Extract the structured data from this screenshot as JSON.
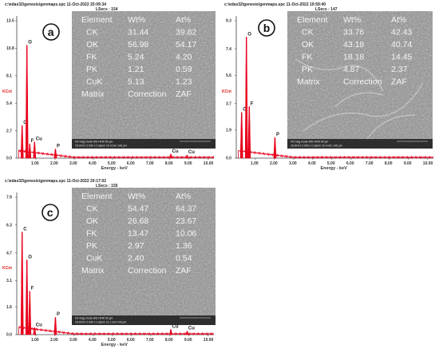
{
  "chart_data": [
    {
      "type": "bar",
      "panel_label": "a",
      "title": "c:\\edax32\\genesis\\genmaps.spc  11-Oct-2022 20:09:34",
      "subtitle": "LSecs : 154",
      "ylabel": "KCnt",
      "xlabel": "Energy - keV",
      "y_ticks": [
        "0.0",
        "2.7",
        "5.4",
        "8.1",
        "10.8",
        "13.5"
      ],
      "ylim": [
        0,
        13.5
      ],
      "x_ticks": [
        "1.00",
        "2.00",
        "3.00",
        "4.00",
        "5.00",
        "6.00",
        "7.00",
        "8.00",
        "9.00",
        "10.00"
      ],
      "xlim": [
        0,
        10.3
      ],
      "peaks": [
        {
          "label": "C",
          "x": 0.28,
          "y": 3.2
        },
        {
          "label": "O",
          "x": 0.53,
          "y": 11.1
        },
        {
          "label": "F",
          "x": 0.68,
          "y": 1.4
        },
        {
          "label": "Cu",
          "x": 0.93,
          "y": 1.6
        },
        {
          "label": "P",
          "x": 2.02,
          "y": 0.9
        },
        {
          "label": "Cu",
          "x": 8.05,
          "y": 0.4
        },
        {
          "label": "Cu",
          "x": 8.9,
          "y": 0.3
        }
      ],
      "table": {
        "header": [
          "Element",
          "Wt%",
          "At%"
        ],
        "rows": [
          [
            "CK",
            "31.44",
            "39.82"
          ],
          [
            "OK",
            "56.98",
            "54.17"
          ],
          [
            "FK",
            "5.24",
            "4.20"
          ],
          [
            "PK",
            "1.21",
            "0.59"
          ],
          [
            "CuK",
            "5.13",
            "1.23"
          ],
          [
            "Matrix",
            "Correction",
            "ZAF"
          ]
        ]
      },
      "micrograph_bar": "HV   mag   mode   WD   HFW                          50 µm",
      "micrograph_info": "15.00 kV  2 000 x  Custom  10.4 mm  149 µm"
    },
    {
      "type": "bar",
      "panel_label": "b",
      "title": "c:\\edax32\\genesis\\genmaps.spc  11-Oct-2022 19:59:40",
      "subtitle": "LSecs : 147",
      "ylabel": "KCnt",
      "xlabel": "Energy - keV",
      "y_ticks": [
        "0.0",
        "1.9",
        "3.7",
        "5.6",
        "7.4",
        "9.3"
      ],
      "ylim": [
        0,
        9.3
      ],
      "x_ticks": [
        "1.00",
        "2.00",
        "3.00",
        "4.00",
        "5.00",
        "6.00",
        "7.00",
        "8.00",
        "9.00",
        "10.00"
      ],
      "xlim": [
        0,
        10.3
      ],
      "peaks": [
        {
          "label": "C",
          "x": 0.28,
          "y": 3.1
        },
        {
          "label": "O",
          "x": 0.53,
          "y": 8.2
        },
        {
          "label": "F",
          "x": 0.68,
          "y": 3.5
        },
        {
          "label": "P",
          "x": 2.02,
          "y": 1.4
        }
      ],
      "table": {
        "header": [
          "Element",
          "Wt%",
          "At%"
        ],
        "rows": [
          [
            "CK",
            "33.76",
            "42.43"
          ],
          [
            "OK",
            "43.18",
            "40.74"
          ],
          [
            "FK",
            "18.18",
            "14.45"
          ],
          [
            "PK",
            "4.87",
            "2.37"
          ],
          [
            "Matrix",
            "Correction",
            "ZAF"
          ]
        ]
      },
      "micrograph_bar": "HV   mag   mode   WD   HFW                          50 µm",
      "micrograph_info": "15.00 kV  2 000 x  Custom  10.4 mm  149 µm"
    },
    {
      "type": "bar",
      "panel_label": "c",
      "title": "c:\\edax32\\genesis\\genmaps.spc  11-Oct-2022 20:17:02",
      "subtitle": "LSecs : 155",
      "ylabel": "KCnt",
      "xlabel": "Energy - keV",
      "y_ticks": [
        "0.0",
        "1.6",
        "3.1",
        "4.7",
        "6.3",
        "7.9"
      ],
      "ylim": [
        0,
        7.9
      ],
      "x_ticks": [
        "1.00",
        "2.00",
        "3.00",
        "4.00",
        "5.00",
        "6.00",
        "7.00",
        "8.00",
        "9.00",
        "10.00"
      ],
      "xlim": [
        0,
        10.3
      ],
      "peaks": [
        {
          "label": "C",
          "x": 0.28,
          "y": 5.9
        },
        {
          "label": "O",
          "x": 0.53,
          "y": 4.3
        },
        {
          "label": "F",
          "x": 0.68,
          "y": 2.5
        },
        {
          "label": "Cu",
          "x": 0.93,
          "y": 0.4
        },
        {
          "label": "P",
          "x": 2.02,
          "y": 1.0
        },
        {
          "label": "Cu",
          "x": 8.05,
          "y": 0.3
        },
        {
          "label": "Cu",
          "x": 8.9,
          "y": 0.2
        }
      ],
      "table": {
        "header": [
          "Element",
          "Wt%",
          "At%"
        ],
        "rows": [
          [
            "CK",
            "54.47",
            "64.37"
          ],
          [
            "OK",
            "26.68",
            "23.67"
          ],
          [
            "FK",
            "13.47",
            "10.06"
          ],
          [
            "PK",
            "2.97",
            "1.36"
          ],
          [
            "CuK",
            "2.40",
            "0.54"
          ],
          [
            "Matrix",
            "Correction",
            "ZAF"
          ]
        ]
      },
      "micrograph_bar": "HV   mag   mode   WD   HFW                          50 µm",
      "micrograph_info": "15.00 kV  2 000 x  Custom  11.1 mm  149 µm"
    }
  ],
  "colors": {
    "spectrum": "#e8001c",
    "axis": "#444444",
    "ylabel": "#d22222",
    "micrograph": "#8a8a8a",
    "micrograph_dark": "#6e6e6e",
    "table_text": "#f5f5f5",
    "badge_fill": "#ffffff",
    "badge_stroke": "#111111"
  }
}
